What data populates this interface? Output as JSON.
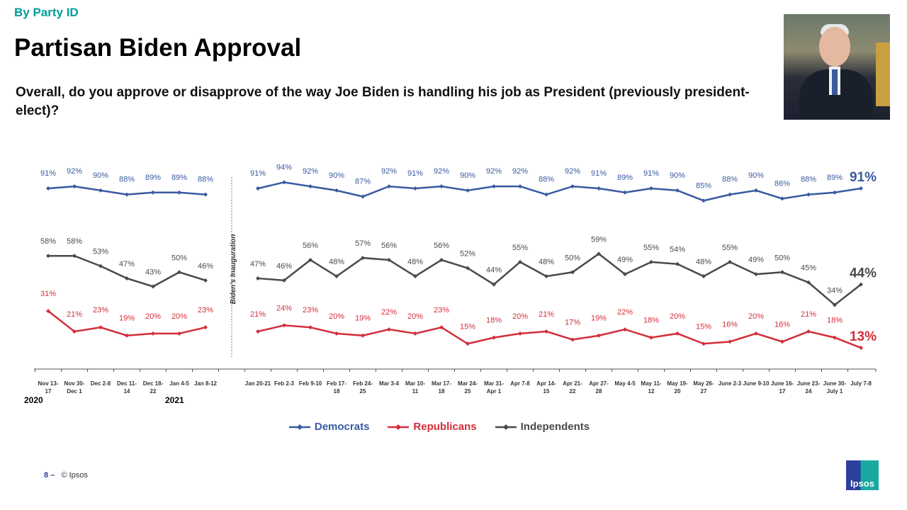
{
  "header": {
    "kicker": "By Party ID",
    "title": "Partisan Biden Approval",
    "question": "Overall, do you approve or disapprove of the way Joe Biden is handling his job as President (previously president-elect)?"
  },
  "footer": {
    "page": "8 –",
    "copyright": "© Ipsos"
  },
  "logo": {
    "text": "Ipsos"
  },
  "chart_data": {
    "type": "line",
    "categories": [
      "Nov 13-|17",
      "Nov 30-|Dec 1",
      "Dec 2-8",
      "Dec 11-|14",
      "Dec 18-|22",
      "Jan 4-5",
      "Jan 8-12",
      "",
      "Jan 20-21",
      "Feb 2-3",
      "Feb 9-10",
      "Feb 17-|18",
      "Feb 24-|25",
      "Mar 3-4",
      "Mar 10-|11",
      "Mar 17-|18",
      "Mar 24-|25",
      "Mar 31-|Apr 1",
      "Apr 7-8",
      "Apr 14-|15",
      "Apr 21-|22",
      "Apr 27-|28",
      "May 4-5",
      "May 11-|12",
      "May 19-|20",
      "May 26-|27",
      "June 2-3",
      "June 9-10",
      "June 16-|17",
      "June 23-|24",
      "June 30-|July 1",
      "July 7-8"
    ],
    "year_labels": [
      "2020",
      "2021"
    ],
    "annotation": "Biden's Inauguration",
    "unit": "%",
    "series": [
      {
        "name": "Democrats",
        "color": "#3a5aa0",
        "values": [
          91,
          92,
          90,
          88,
          89,
          89,
          88,
          null,
          91,
          94,
          92,
          90,
          87,
          92,
          91,
          92,
          90,
          92,
          92,
          88,
          92,
          91,
          89,
          91,
          90,
          85,
          88,
          90,
          86,
          88,
          89,
          91
        ]
      },
      {
        "name": "Republicans",
        "color": "#d22e3a",
        "values": [
          31,
          21,
          23,
          19,
          20,
          20,
          23,
          null,
          21,
          24,
          23,
          20,
          19,
          22,
          20,
          23,
          15,
          18,
          20,
          21,
          17,
          19,
          22,
          18,
          20,
          15,
          16,
          20,
          16,
          21,
          18,
          13
        ]
      },
      {
        "name": "Independents",
        "color": "#4a4a4a",
        "values": [
          58,
          58,
          53,
          47,
          43,
          50,
          46,
          null,
          47,
          46,
          56,
          48,
          57,
          56,
          48,
          56,
          52,
          44,
          55,
          48,
          50,
          59,
          49,
          55,
          54,
          48,
          55,
          49,
          50,
          45,
          34,
          44
        ]
      }
    ],
    "legend": "bottom",
    "grid": false
  }
}
